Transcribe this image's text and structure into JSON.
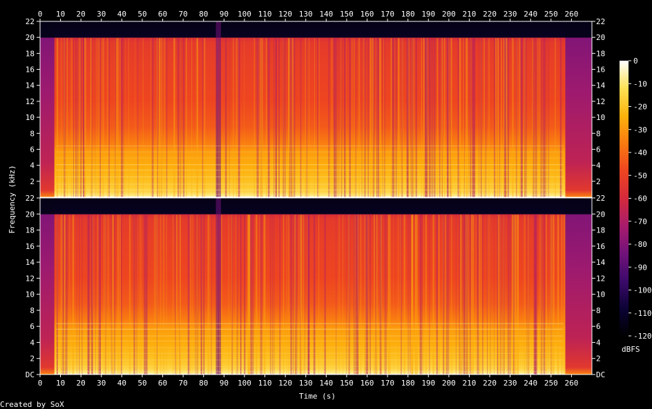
{
  "chart_data": {
    "type": "heatmap",
    "title": "",
    "xlabel": "Time (s)",
    "ylabel": "Frequency (kHz)",
    "colorbar_label": "dBFS",
    "xlim": [
      0,
      270
    ],
    "ylim_khz": [
      0,
      22
    ],
    "x_ticks": [
      "0",
      "10",
      "20",
      "30",
      "40",
      "50",
      "60",
      "70",
      "80",
      "90",
      "100",
      "110",
      "120",
      "130",
      "140",
      "150",
      "160",
      "170",
      "180",
      "190",
      "200",
      "210",
      "220",
      "230",
      "240",
      "250",
      "260"
    ],
    "y_ticks_top": [
      "2",
      "4",
      "6",
      "8",
      "10",
      "12",
      "14",
      "16",
      "18",
      "20",
      "22"
    ],
    "y_ticks_bottom": [
      "DC",
      "2",
      "4",
      "6",
      "8",
      "10",
      "12",
      "14",
      "16",
      "18",
      "20",
      "22"
    ],
    "colorbar_ticks": [
      "0",
      "-10",
      "-20",
      "-30",
      "-40",
      "-50",
      "-60",
      "-70",
      "-80",
      "-90",
      "-100",
      "-110",
      "-120"
    ],
    "colorbar_range_dbfs": [
      -120,
      0
    ],
    "channels": 2,
    "content_cutoff_khz": 20,
    "colors": {
      "background": "#000000",
      "palette": [
        "#000000",
        "#0c0336",
        "#3c0a6b",
        "#72127a",
        "#a81c6c",
        "#d42a3c",
        "#ee4520",
        "#fa7a10",
        "#fdb30c",
        "#fee155",
        "#ffffff"
      ]
    }
  },
  "footer": {
    "credit": "Created by SoX"
  }
}
